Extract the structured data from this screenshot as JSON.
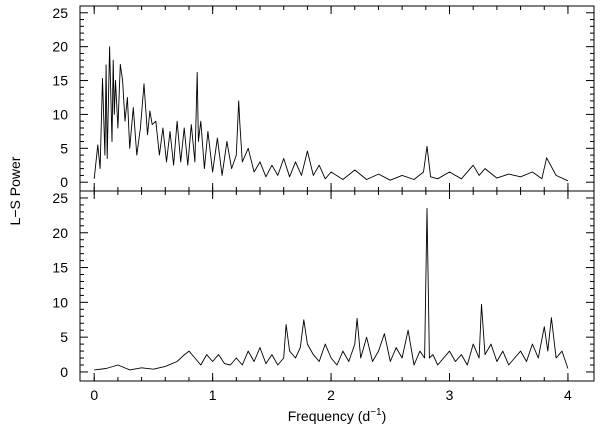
{
  "chart_data": {
    "type": "line",
    "xlabel": "Frequency (d",
    "xlabel_sup": "−1",
    "xlabel_close": ")",
    "ylabel": "L−S Power",
    "xlim": [
      -0.12,
      4.22
    ],
    "xticks": [
      "0",
      "1",
      "2",
      "3",
      "4"
    ],
    "xtick_values": [
      0,
      1,
      2,
      3,
      4
    ],
    "panels": [
      {
        "name": "top",
        "ylim": [
          -1.3,
          26
        ],
        "yticks": [
          "0",
          "5",
          "10",
          "15",
          "20",
          "25"
        ],
        "ytick_values": [
          0,
          5,
          10,
          15,
          20,
          25
        ],
        "series": [
          {
            "x": [
              0.0,
              0.03,
              0.05,
              0.07,
              0.09,
              0.1,
              0.11,
              0.13,
              0.15,
              0.16,
              0.17,
              0.18,
              0.2,
              0.22,
              0.24,
              0.26,
              0.28,
              0.3,
              0.33,
              0.36,
              0.39,
              0.42,
              0.45,
              0.47,
              0.49,
              0.52,
              0.55,
              0.58,
              0.61,
              0.64,
              0.67,
              0.7,
              0.73,
              0.76,
              0.79,
              0.82,
              0.85,
              0.87,
              0.88,
              0.9,
              0.93,
              0.96,
              1.0,
              1.04,
              1.08,
              1.12,
              1.16,
              1.2,
              1.22,
              1.23,
              1.25,
              1.3,
              1.35,
              1.4,
              1.45,
              1.5,
              1.55,
              1.6,
              1.65,
              1.7,
              1.75,
              1.8,
              1.85,
              1.9,
              1.95,
              2.0,
              2.1,
              2.2,
              2.3,
              2.4,
              2.5,
              2.6,
              2.7,
              2.78,
              2.81,
              2.84,
              2.9,
              3.0,
              3.1,
              3.2,
              3.25,
              3.3,
              3.4,
              3.5,
              3.6,
              3.7,
              3.78,
              3.82,
              3.9,
              4.0
            ],
            "y": [
              0.5,
              5.5,
              2.0,
              15.3,
              4.0,
              17.3,
              3.5,
              20.0,
              6.0,
              18.0,
              10.0,
              15.0,
              8.0,
              17.4,
              15.0,
              9.0,
              12.5,
              5.0,
              11.0,
              4.0,
              8.0,
              14.5,
              7.0,
              10.5,
              8.5,
              9.0,
              4.0,
              8.0,
              3.0,
              7.5,
              2.5,
              9.0,
              3.0,
              8.0,
              2.5,
              8.5,
              3.0,
              16.2,
              6.0,
              9.0,
              2.0,
              7.5,
              1.5,
              6.5,
              1.0,
              6.0,
              2.0,
              4.0,
              12.0,
              8.5,
              3.0,
              5.0,
              1.5,
              3.0,
              0.8,
              2.5,
              1.0,
              3.5,
              0.8,
              3.0,
              1.0,
              4.6,
              1.0,
              2.5,
              0.5,
              1.5,
              0.4,
              1.8,
              0.4,
              1.2,
              0.3,
              1.0,
              0.4,
              1.5,
              5.3,
              0.8,
              0.5,
              1.5,
              0.5,
              2.5,
              1.0,
              2.0,
              0.6,
              1.2,
              0.8,
              1.5,
              0.5,
              3.6,
              1.0,
              0.2
            ]
          }
        ]
      },
      {
        "name": "bottom",
        "ylim": [
          -1.3,
          26
        ],
        "yticks": [
          "0",
          "5",
          "10",
          "15",
          "20",
          "25"
        ],
        "ytick_values": [
          0,
          5,
          10,
          15,
          20,
          25
        ],
        "series": [
          {
            "x": [
              0.0,
              0.1,
              0.2,
              0.3,
              0.4,
              0.5,
              0.6,
              0.7,
              0.75,
              0.8,
              0.85,
              0.9,
              0.95,
              1.0,
              1.05,
              1.1,
              1.15,
              1.2,
              1.25,
              1.3,
              1.35,
              1.4,
              1.45,
              1.5,
              1.55,
              1.6,
              1.62,
              1.65,
              1.7,
              1.74,
              1.77,
              1.8,
              1.85,
              1.9,
              1.95,
              2.0,
              2.05,
              2.1,
              2.15,
              2.2,
              2.22,
              2.25,
              2.3,
              2.35,
              2.4,
              2.45,
              2.5,
              2.55,
              2.6,
              2.65,
              2.7,
              2.75,
              2.79,
              2.81,
              2.83,
              2.86,
              2.9,
              3.0,
              3.05,
              3.1,
              3.15,
              3.2,
              3.25,
              3.27,
              3.3,
              3.35,
              3.4,
              3.45,
              3.5,
              3.55,
              3.6,
              3.65,
              3.7,
              3.75,
              3.8,
              3.83,
              3.86,
              3.9,
              3.95,
              4.0
            ],
            "y": [
              0.3,
              0.5,
              1.0,
              0.3,
              0.6,
              0.4,
              0.8,
              1.5,
              2.3,
              3.0,
              2.0,
              1.0,
              2.5,
              1.5,
              2.5,
              1.2,
              1.0,
              2.0,
              1.0,
              3.0,
              1.5,
              3.5,
              1.2,
              2.5,
              1.0,
              2.0,
              6.8,
              3.0,
              2.0,
              3.5,
              7.5,
              4.0,
              2.5,
              1.5,
              4.0,
              2.0,
              1.0,
              3.0,
              1.5,
              4.0,
              7.7,
              2.0,
              5.0,
              1.5,
              3.0,
              5.5,
              1.5,
              3.5,
              2.0,
              6.0,
              1.0,
              3.0,
              2.0,
              23.5,
              2.0,
              2.5,
              1.0,
              3.0,
              1.5,
              2.5,
              1.0,
              4.0,
              2.0,
              9.7,
              2.5,
              4.0,
              1.5,
              3.0,
              1.0,
              2.0,
              3.0,
              1.5,
              4.0,
              2.0,
              6.5,
              3.0,
              7.8,
              2.0,
              3.0,
              0.5
            ]
          }
        ]
      }
    ]
  }
}
